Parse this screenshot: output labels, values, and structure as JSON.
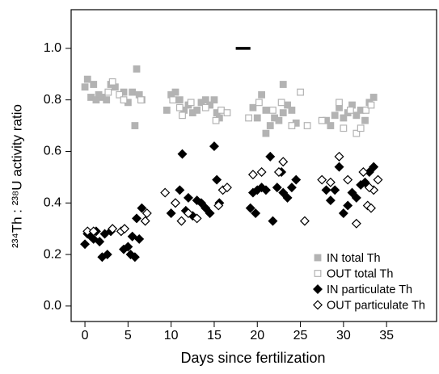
{
  "chart_data": {
    "type": "scatter",
    "xlabel": "Days since fertilization",
    "ylabel": "²³⁴Th : ²³⁸U activity ratio",
    "xlim": [
      -1.6,
      40.8
    ],
    "ylim": [
      -0.06,
      1.15
    ],
    "xticks": [
      0,
      5,
      10,
      15,
      20,
      25,
      30,
      35
    ],
    "yticks": [
      {
        "value": 0,
        "label": "0.0"
      },
      0.2,
      0.4,
      0.6,
      0.8,
      {
        "value": 1,
        "label": "1.0"
      }
    ],
    "grid": false,
    "legend": "bottom-right",
    "segment": {
      "x": [
        17.5,
        19.2
      ],
      "y": 1.0,
      "color": "#000000"
    },
    "series": [
      {
        "name": "IN total Th",
        "color": "#b3b3b3",
        "marker": "square",
        "filled": true,
        "x": [
          0,
          0.3,
          0.7,
          1,
          1.3,
          1.6,
          2,
          2.5,
          3,
          3.5,
          4.5,
          5,
          5.5,
          5.8,
          6,
          6.3,
          6.6,
          9.5,
          10,
          10.5,
          11,
          11.5,
          12,
          12.5,
          13,
          13.5,
          14,
          14.5,
          15,
          15.3,
          15.6,
          19.5,
          20,
          20.5,
          21,
          21.5,
          22,
          22.5,
          23,
          23.5,
          24,
          24.5,
          23,
          21,
          28,
          28.5,
          29,
          30,
          30.5,
          31,
          31.5,
          32,
          32.5,
          33,
          33.5,
          29.5
        ],
        "values": [
          0.85,
          0.88,
          0.81,
          0.86,
          0.8,
          0.82,
          0.81,
          0.8,
          0.86,
          0.85,
          0.83,
          0.79,
          0.83,
          0.7,
          0.92,
          0.82,
          0.8,
          0.76,
          0.82,
          0.83,
          0.8,
          0.76,
          0.78,
          0.75,
          0.76,
          0.79,
          0.8,
          0.78,
          0.8,
          0.75,
          0.73,
          0.77,
          0.73,
          0.82,
          0.76,
          0.7,
          0.73,
          0.72,
          0.75,
          0.78,
          0.76,
          0.71,
          0.86,
          0.67,
          0.72,
          0.7,
          0.74,
          0.73,
          0.75,
          0.78,
          0.74,
          0.76,
          0.72,
          0.79,
          0.81,
          0.77
        ]
      },
      {
        "name": "OUT total Th",
        "color": "#b3b3b3",
        "marker": "square",
        "filled": false,
        "x": [
          2.7,
          3.2,
          4,
          4.5,
          6.5,
          10.2,
          11,
          11.3,
          12.3,
          14,
          15.2,
          15.8,
          16.5,
          19,
          20.2,
          21.8,
          22.8,
          24,
          25,
          25.8,
          27.5,
          29.5,
          30,
          30.8,
          31.5,
          32,
          32.6,
          33.2
        ],
        "values": [
          0.83,
          0.87,
          0.82,
          0.8,
          0.8,
          0.8,
          0.77,
          0.74,
          0.79,
          0.77,
          0.72,
          0.76,
          0.75,
          0.73,
          0.79,
          0.76,
          0.79,
          0.7,
          0.83,
          0.7,
          0.72,
          0.79,
          0.69,
          0.76,
          0.67,
          0.69,
          0.76,
          0.78
        ]
      },
      {
        "name": "IN particulate Th",
        "color": "#000000",
        "marker": "diamond",
        "filled": true,
        "x": [
          0,
          0.3,
          0.7,
          1,
          1.3,
          1.7,
          2,
          2.3,
          2.6,
          3,
          4.5,
          5,
          5.3,
          5.5,
          5.8,
          6,
          6.3,
          6.6,
          10,
          10.5,
          11,
          11.3,
          11.7,
          12,
          12.5,
          13,
          13.5,
          14,
          14.5,
          15,
          15.3,
          15.6,
          19.2,
          19.5,
          19.8,
          20,
          20.5,
          21,
          21.5,
          21.8,
          22.3,
          22.8,
          23,
          23.5,
          24,
          24.5,
          28,
          28.5,
          29,
          29.5,
          30,
          30.5,
          31,
          31.5,
          32,
          32.5,
          33,
          33.5
        ],
        "values": [
          0.24,
          0.28,
          0.27,
          0.26,
          0.29,
          0.25,
          0.19,
          0.28,
          0.2,
          0.29,
          0.22,
          0.23,
          0.2,
          0.27,
          0.19,
          0.34,
          0.26,
          0.38,
          0.36,
          0.4,
          0.45,
          0.59,
          0.37,
          0.42,
          0.35,
          0.41,
          0.4,
          0.38,
          0.36,
          0.62,
          0.49,
          0.4,
          0.38,
          0.44,
          0.36,
          0.45,
          0.46,
          0.45,
          0.58,
          0.33,
          0.46,
          0.52,
          0.44,
          0.42,
          0.46,
          0.49,
          0.45,
          0.41,
          0.45,
          0.54,
          0.36,
          0.39,
          0.44,
          0.42,
          0.47,
          0.48,
          0.52,
          0.54
        ]
      },
      {
        "name": "OUT particulate Th",
        "color": "#000000",
        "marker": "diamond",
        "filled": false,
        "x": [
          0.3,
          1,
          3.2,
          4.2,
          4.6,
          7,
          7.2,
          9.3,
          10.5,
          11.2,
          12,
          13,
          15.5,
          16,
          16.5,
          19.5,
          20.5,
          22.5,
          23,
          25.5,
          27.5,
          28.5,
          29.5,
          30.5,
          32.3,
          32.8,
          33.2,
          33.5,
          34,
          31.5,
          33
        ],
        "values": [
          0.29,
          0.29,
          0.3,
          0.29,
          0.3,
          0.33,
          0.36,
          0.44,
          0.4,
          0.33,
          0.36,
          0.34,
          0.39,
          0.45,
          0.46,
          0.51,
          0.52,
          0.52,
          0.56,
          0.33,
          0.49,
          0.48,
          0.58,
          0.49,
          0.52,
          0.39,
          0.38,
          0.45,
          0.49,
          0.32,
          0.46
        ]
      }
    ]
  }
}
